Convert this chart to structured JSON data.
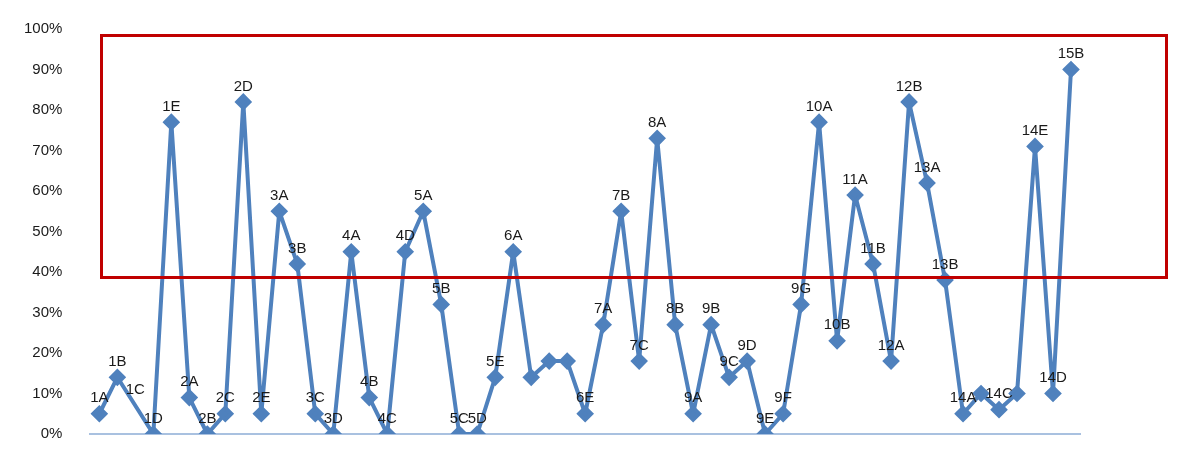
{
  "chart_data": {
    "type": "line",
    "categories": [
      "1A",
      "1B",
      "1C",
      "1D",
      "1E",
      "2A",
      "2B",
      "2C",
      "2D",
      "2E",
      "3A",
      "3B",
      "3C",
      "3D",
      "4A",
      "4B",
      "4C",
      "4D",
      "5A",
      "5B",
      "5C",
      "5D",
      "5E",
      "6A",
      null,
      null,
      null,
      "6E",
      "7A",
      "7B",
      "7C",
      "8A",
      "8B",
      "9A",
      "9B",
      "9C",
      "9D",
      "9E",
      "9F",
      "9G",
      "10A",
      "10B",
      "11A",
      "11B",
      "12A",
      "12B",
      "13A",
      "13B",
      "14A",
      null,
      "14C",
      null,
      "14E",
      "14D",
      "15B"
    ],
    "values": [
      5,
      14,
      null,
      0,
      77,
      9,
      0,
      5,
      82,
      5,
      55,
      42,
      5,
      0,
      45,
      9,
      0,
      45,
      55,
      32,
      0,
      0,
      14,
      45,
      14,
      18,
      18,
      5,
      27,
      55,
      18,
      73,
      27,
      5,
      27,
      14,
      18,
      0,
      5,
      32,
      77,
      23,
      59,
      42,
      18,
      82,
      62,
      38,
      5,
      10,
      6,
      10,
      71,
      10,
      90
    ],
    "color": "#4f81bd",
    "ylim": [
      0,
      100
    ],
    "yticks": [
      {
        "value": 0,
        "label": "0%"
      },
      {
        "value": 10,
        "label": "10%"
      },
      {
        "value": 20,
        "label": "20%"
      },
      {
        "value": 30,
        "label": "30%"
      },
      {
        "value": 40,
        "label": "40%"
      },
      {
        "value": 50,
        "label": "50%"
      },
      {
        "value": 60,
        "label": "60%"
      },
      {
        "value": 70,
        "label": "70%"
      },
      {
        "value": 80,
        "label": "80%"
      },
      {
        "value": 90,
        "label": "90%"
      },
      {
        "value": 100,
        "label": "100%"
      }
    ],
    "marker": "diamond",
    "line_style": "solid",
    "grid": false,
    "legend": false,
    "tick_labels": "y"
  }
}
